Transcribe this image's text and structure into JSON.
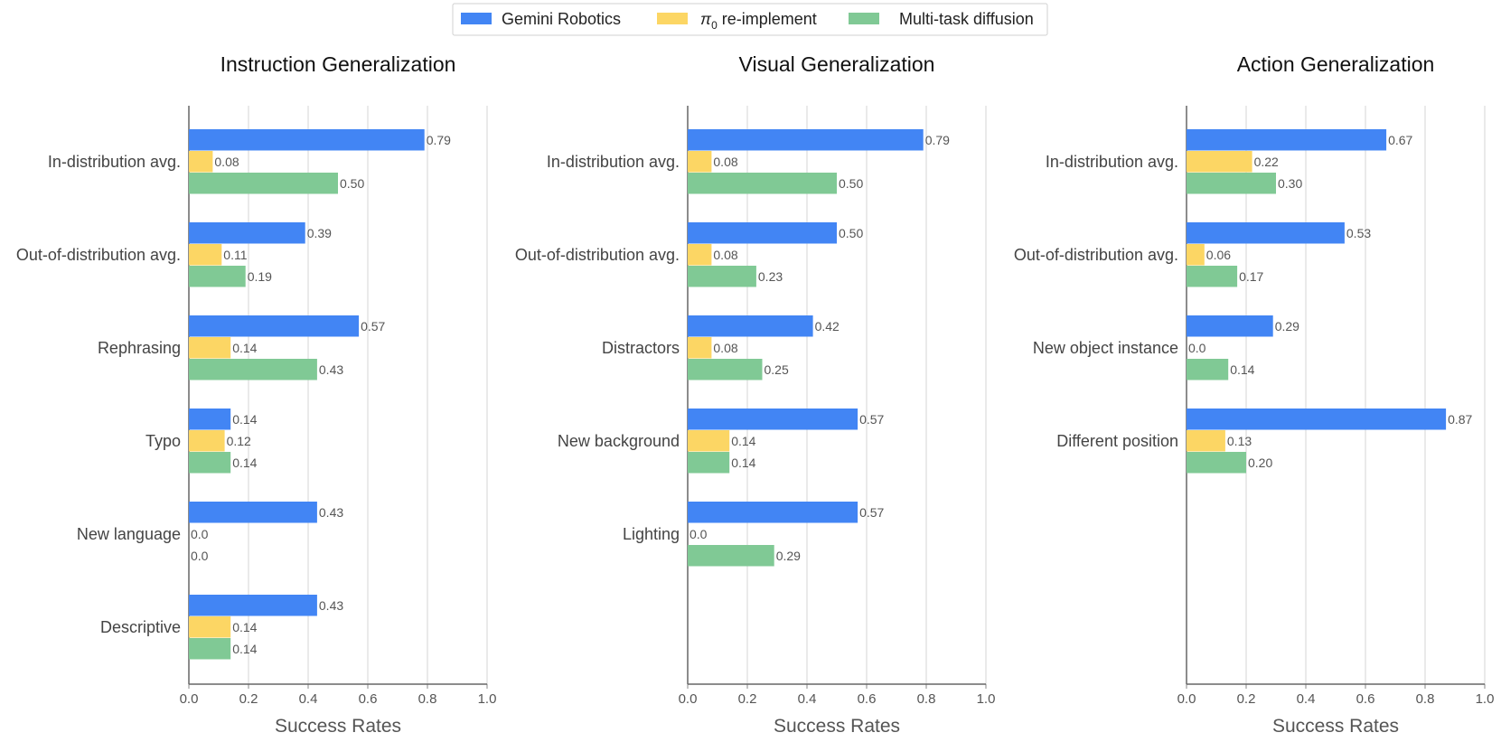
{
  "legend": {
    "items": [
      {
        "label": "Gemini Robotics",
        "color": "#4285f4"
      },
      {
        "label_prefix": "π",
        "label_sub": "0",
        "label_suffix": " re-implement",
        "color": "#fcd664"
      },
      {
        "label": "Multi-task diffusion",
        "color": "#80c995"
      }
    ]
  },
  "chart_data": [
    {
      "type": "bar",
      "orientation": "horizontal",
      "title": "Instruction Generalization",
      "xlabel": "Success Rates",
      "ylabel": "",
      "xlim": [
        0,
        1.0
      ],
      "xticks": [
        "0.0",
        "0.2",
        "0.4",
        "0.6",
        "0.8",
        "1.0"
      ],
      "grid": "vertical",
      "categories": [
        "In-distribution avg.",
        "Out-of-distribution avg.",
        "Rephrasing",
        "Typo",
        "New language",
        "Descriptive"
      ],
      "series": [
        {
          "name": "Gemini Robotics",
          "values": [
            0.79,
            0.39,
            0.57,
            0.14,
            0.43,
            0.43
          ],
          "labels": [
            "0.79",
            "0.39",
            "0.57",
            "0.14",
            "0.43",
            "0.43"
          ]
        },
        {
          "name": "π0 re-implement",
          "values": [
            0.08,
            0.11,
            0.14,
            0.12,
            0.0,
            0.14
          ],
          "labels": [
            "0.08",
            "0.11",
            "0.14",
            "0.12",
            "0.0",
            "0.14"
          ]
        },
        {
          "name": "Multi-task diffusion",
          "values": [
            0.5,
            0.19,
            0.43,
            0.14,
            0.0,
            0.14
          ],
          "labels": [
            "0.50",
            "0.19",
            "0.43",
            "0.14",
            "0.0",
            "0.14"
          ]
        }
      ]
    },
    {
      "type": "bar",
      "orientation": "horizontal",
      "title": "Visual Generalization",
      "xlabel": "Success Rates",
      "ylabel": "",
      "xlim": [
        0,
        1.0
      ],
      "xticks": [
        "0.0",
        "0.2",
        "0.4",
        "0.6",
        "0.8",
        "1.0"
      ],
      "grid": "vertical",
      "categories": [
        "In-distribution avg.",
        "Out-of-distribution avg.",
        "Distractors",
        "New background",
        "Lighting"
      ],
      "series": [
        {
          "name": "Gemini Robotics",
          "values": [
            0.79,
            0.5,
            0.42,
            0.57,
            0.57
          ],
          "labels": [
            "0.79",
            "0.50",
            "0.42",
            "0.57",
            "0.57"
          ]
        },
        {
          "name": "π0 re-implement",
          "values": [
            0.08,
            0.08,
            0.08,
            0.14,
            0.0
          ],
          "labels": [
            "0.08",
            "0.08",
            "0.08",
            "0.14",
            "0.0"
          ]
        },
        {
          "name": "Multi-task diffusion",
          "values": [
            0.5,
            0.23,
            0.25,
            0.14,
            0.29
          ],
          "labels": [
            "0.50",
            "0.23",
            "0.25",
            "0.14",
            "0.29"
          ]
        }
      ]
    },
    {
      "type": "bar",
      "orientation": "horizontal",
      "title": "Action Generalization",
      "xlabel": "Success Rates",
      "ylabel": "",
      "xlim": [
        0,
        1.0
      ],
      "xticks": [
        "0.0",
        "0.2",
        "0.4",
        "0.6",
        "0.8",
        "1.0"
      ],
      "grid": "vertical",
      "categories": [
        "In-distribution avg.",
        "Out-of-distribution avg.",
        "New object instance",
        "Different position"
      ],
      "series": [
        {
          "name": "Gemini Robotics",
          "values": [
            0.67,
            0.53,
            0.29,
            0.87
          ],
          "labels": [
            "0.67",
            "0.53",
            "0.29",
            "0.87"
          ]
        },
        {
          "name": "π0 re-implement",
          "values": [
            0.22,
            0.06,
            0.0,
            0.13
          ],
          "labels": [
            "0.22",
            "0.06",
            "0.0",
            "0.13"
          ]
        },
        {
          "name": "Multi-task diffusion",
          "values": [
            0.3,
            0.17,
            0.14,
            0.2
          ],
          "labels": [
            "0.30",
            "0.17",
            "0.14",
            "0.20"
          ]
        }
      ]
    }
  ]
}
